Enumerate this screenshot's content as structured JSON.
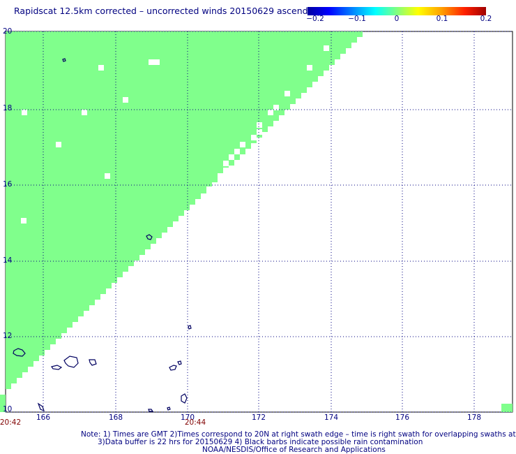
{
  "title": "Rapidscat 12.5km corrected – uncorrected winds 20150629 ascending",
  "colorbar": {
    "labels": [
      "−0.2",
      "−0.1",
      "0",
      "0.1",
      "0.2"
    ],
    "min": -0.2,
    "max": 0.2,
    "colors": [
      "#0000a0",
      "#0000ff",
      "#00a0ff",
      "#00ffff",
      "#80ff80",
      "#ffff00",
      "#ffa000",
      "#ff2000",
      "#a00000"
    ]
  },
  "axes": {
    "lat_ticks": [
      "20",
      "18",
      "16",
      "14",
      "12",
      "10"
    ],
    "lon_ticks": [
      "166",
      "168",
      "170",
      "172",
      "174",
      "176",
      "178"
    ],
    "lat_range": [
      10,
      20
    ],
    "lon_range": [
      165,
      179.5
    ]
  },
  "times": [
    "20:42",
    "20:44"
  ],
  "notes": [
    "Note: 1) Times are GMT 2)Times correspond to 20N at right swath edge – time is right swath for overlapping swaths at 20N",
    "3)Data buffer is 22 hrs for 20150629 4) Black barbs indicate possible rain contamination",
    "NOAA/NESDIS/Office of Research and Applications"
  ],
  "swath_color": "#80ff8c",
  "coast_color": "#000060"
}
